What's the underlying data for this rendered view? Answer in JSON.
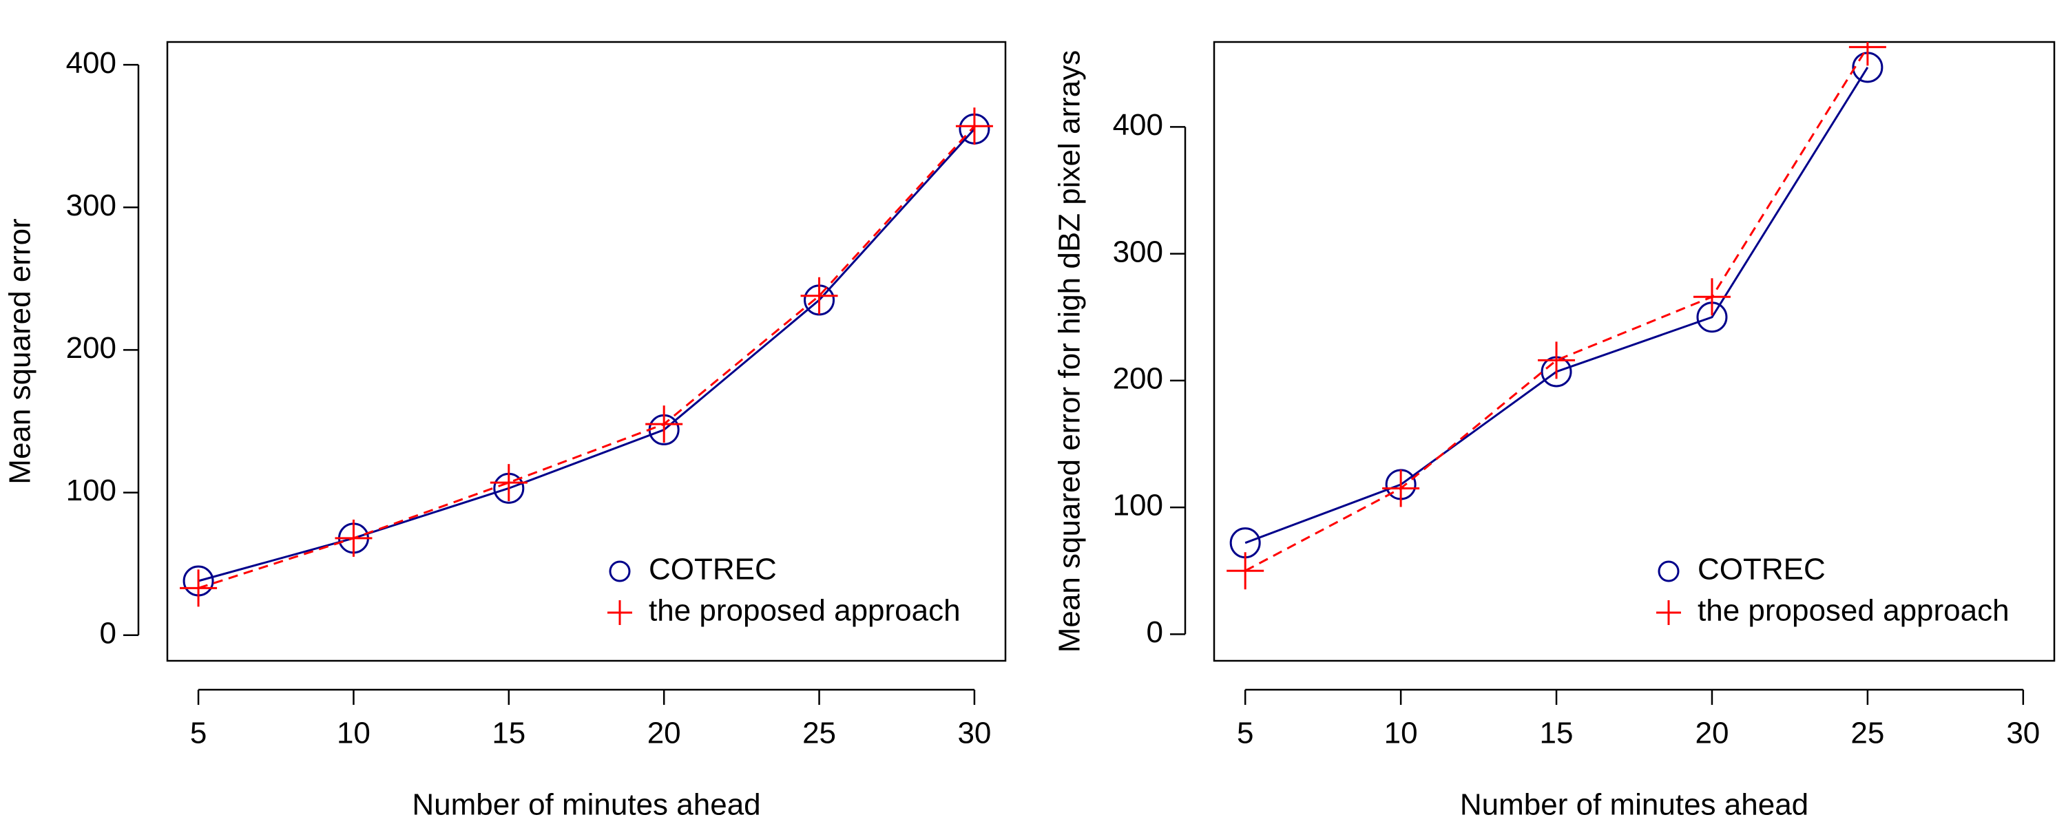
{
  "chart_data": [
    {
      "type": "line",
      "xlabel": "Number of minutes ahead",
      "ylabel": "Mean squared error",
      "x": [
        5,
        10,
        15,
        20,
        25,
        30
      ],
      "series": [
        {
          "name": "COTREC",
          "color": "#00008b",
          "linestyle": "solid",
          "marker": "circle",
          "values": [
            38,
            68,
            103,
            144,
            235,
            355
          ]
        },
        {
          "name": "the proposed approach",
          "color": "#ff0000",
          "linestyle": "dashed",
          "marker": "plus",
          "values": [
            33,
            68,
            107,
            148,
            238,
            357
          ]
        }
      ],
      "xlim": [
        4,
        31
      ],
      "xticks": [
        5,
        10,
        15,
        20,
        25,
        30
      ],
      "ylim": [
        -18,
        416
      ],
      "yticks": [
        0,
        100,
        200,
        300,
        400
      ],
      "legend": "bottomright"
    },
    {
      "type": "line",
      "xlabel": "Number of minutes ahead",
      "ylabel": "Mean squared error for high dBZ pixel arrays",
      "x": [
        5,
        10,
        15,
        20,
        25,
        30
      ],
      "series": [
        {
          "name": "COTREC",
          "color": "#00008b",
          "linestyle": "solid",
          "marker": "circle",
          "values": [
            72,
            118,
            207,
            250,
            447,
            null
          ]
        },
        {
          "name": "the proposed approach",
          "color": "#ff0000",
          "linestyle": "dashed",
          "marker": "plus",
          "values": [
            50,
            115,
            216,
            266,
            463,
            null
          ]
        }
      ],
      "xlim": [
        4,
        31
      ],
      "xticks": [
        5,
        10,
        15,
        20,
        25,
        30
      ],
      "ylim": [
        -21,
        467
      ],
      "yticks": [
        0,
        100,
        200,
        300,
        400
      ],
      "legend": "bottomright"
    }
  ]
}
